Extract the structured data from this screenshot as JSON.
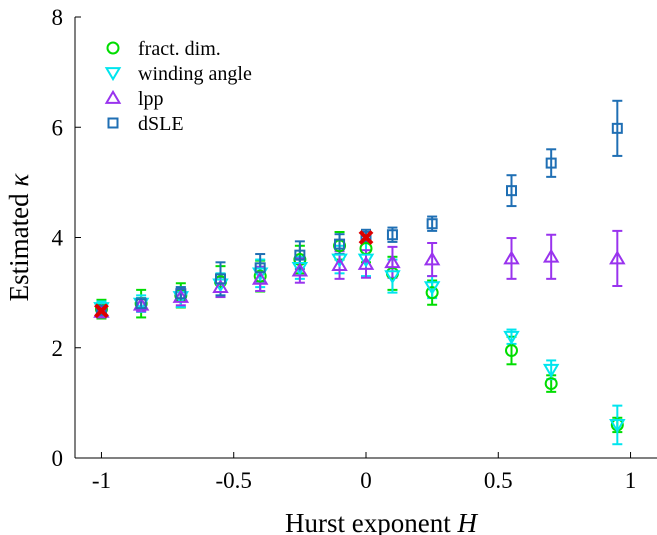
{
  "chart_data": {
    "type": "scatter",
    "title": "",
    "xlabel": "Hurst exponent",
    "xlabel_symbol": "H",
    "ylabel": "Estimated",
    "ylabel_symbol": "κ",
    "xlim": [
      -1.1,
      1.1
    ],
    "ylim": [
      0,
      8
    ],
    "xticks": [
      -1,
      -0.5,
      0,
      0.5,
      1
    ],
    "xtick_labels": [
      "-1",
      "-0.5",
      "0",
      "0.5",
      "1"
    ],
    "yticks": [
      0,
      2,
      4,
      6,
      8
    ],
    "ytick_labels": [
      "0",
      "2",
      "4",
      "6",
      "8"
    ],
    "grid": false,
    "legend_position": "top-left",
    "series": [
      {
        "name": "fract. dim.",
        "marker": "circle",
        "color": "#00dd00",
        "points": [
          {
            "x": -1,
            "y": 2.7,
            "err": 0.17
          },
          {
            "x": -0.85,
            "y": 2.8,
            "err": 0.25
          },
          {
            "x": -0.7,
            "y": 2.95,
            "err": 0.22
          },
          {
            "x": -0.55,
            "y": 3.2,
            "err": 0.28
          },
          {
            "x": -0.4,
            "y": 3.3,
            "err": 0.28
          },
          {
            "x": -0.25,
            "y": 3.6,
            "err": 0.25
          },
          {
            "x": -0.1,
            "y": 3.85,
            "err": 0.25
          },
          {
            "x": 0,
            "y": 3.8,
            "err": 0.25
          },
          {
            "x": 0.1,
            "y": 3.35,
            "err": 0.3
          },
          {
            "x": 0.25,
            "y": 3.0,
            "err": 0.22
          },
          {
            "x": 0.55,
            "y": 1.95,
            "err": 0.25
          },
          {
            "x": 0.7,
            "y": 1.35,
            "err": 0.15
          },
          {
            "x": 0.95,
            "y": 0.6,
            "err": 0.13
          }
        ]
      },
      {
        "name": "winding angle",
        "marker": "triangle-down",
        "color": "#00e5ee",
        "points": [
          {
            "x": -1,
            "y": 2.72,
            "err": 0.12
          },
          {
            "x": -0.85,
            "y": 2.8,
            "err": 0.15
          },
          {
            "x": -0.7,
            "y": 2.92,
            "err": 0.18
          },
          {
            "x": -0.55,
            "y": 3.15,
            "err": 0.2
          },
          {
            "x": -0.4,
            "y": 3.35,
            "err": 0.25
          },
          {
            "x": -0.25,
            "y": 3.45,
            "err": 0.2
          },
          {
            "x": -0.1,
            "y": 3.6,
            "err": 0.25
          },
          {
            "x": 0,
            "y": 3.6,
            "err": 0.3
          },
          {
            "x": 0.1,
            "y": 3.3,
            "err": 0.3
          },
          {
            "x": 0.25,
            "y": 3.1,
            "err": 0.2
          },
          {
            "x": 0.55,
            "y": 2.2,
            "err": 0.13
          },
          {
            "x": 0.7,
            "y": 1.6,
            "err": 0.17
          },
          {
            "x": 0.95,
            "y": 0.6,
            "err": 0.35
          }
        ]
      },
      {
        "name": "lpp",
        "marker": "triangle-up",
        "color": "#9933ee",
        "points": [
          {
            "x": -1,
            "y": 2.65,
            "err": 0.1
          },
          {
            "x": -0.85,
            "y": 2.78,
            "err": 0.12
          },
          {
            "x": -0.7,
            "y": 2.92,
            "err": 0.15
          },
          {
            "x": -0.55,
            "y": 3.1,
            "err": 0.18
          },
          {
            "x": -0.4,
            "y": 3.25,
            "err": 0.22
          },
          {
            "x": -0.25,
            "y": 3.4,
            "err": 0.22
          },
          {
            "x": -0.1,
            "y": 3.5,
            "err": 0.25
          },
          {
            "x": 0,
            "y": 3.52,
            "err": 0.25
          },
          {
            "x": 0.1,
            "y": 3.55,
            "err": 0.28
          },
          {
            "x": 0.25,
            "y": 3.6,
            "err": 0.3
          },
          {
            "x": 0.55,
            "y": 3.62,
            "err": 0.37
          },
          {
            "x": 0.7,
            "y": 3.65,
            "err": 0.4
          },
          {
            "x": 0.95,
            "y": 3.62,
            "err": 0.5
          }
        ]
      },
      {
        "name": "dSLE",
        "marker": "square",
        "color": "#1f6fb4",
        "points": [
          {
            "x": -1,
            "y": 2.68,
            "err": 0.08
          },
          {
            "x": -0.85,
            "y": 2.8,
            "err": 0.1
          },
          {
            "x": -0.7,
            "y": 2.98,
            "err": 0.12
          },
          {
            "x": -0.55,
            "y": 3.25,
            "err": 0.3
          },
          {
            "x": -0.4,
            "y": 3.45,
            "err": 0.25
          },
          {
            "x": -0.25,
            "y": 3.68,
            "err": 0.25
          },
          {
            "x": -0.1,
            "y": 3.88,
            "err": 0.18
          },
          {
            "x": 0,
            "y": 4.02,
            "err": 0.12
          },
          {
            "x": 0.1,
            "y": 4.05,
            "err": 0.13
          },
          {
            "x": 0.25,
            "y": 4.25,
            "err": 0.13
          },
          {
            "x": 0.55,
            "y": 4.85,
            "err": 0.28
          },
          {
            "x": 0.7,
            "y": 5.35,
            "err": 0.25
          },
          {
            "x": 0.95,
            "y": 5.98,
            "err": 0.5
          }
        ]
      }
    ],
    "reference_points": {
      "marker": "x",
      "color": "#dd0000",
      "points": [
        {
          "x": -1,
          "y": 2.67
        },
        {
          "x": 0,
          "y": 4.0
        }
      ]
    }
  }
}
